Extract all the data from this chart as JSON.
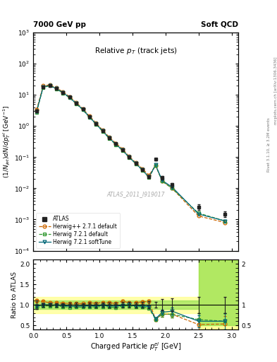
{
  "title_main": "Relative $p_T$ (track jets)",
  "top_left_label": "7000 GeV pp",
  "top_right_label": "Soft QCD",
  "right_label_bottom": "Rivet 3.1.10, ≥ 3.2M events",
  "right_label_top": "mcplots.cern.ch [arXiv:1306.3436]",
  "watermark": "ATLAS_2011_I919017",
  "xlabel": "Charged Particle $p_T^{el}$ [GeV]",
  "ylabel_top": "$(1/N_{jet})dN/dp_T^{el}$ [GeV$^{-1}$]",
  "ylabel_bottom": "Ratio to ATLAS",
  "xlim": [
    0,
    3.1
  ],
  "ylim_top_lo": 0.0001,
  "ylim_top_hi": 1000.0,
  "ylim_bottom_lo": 0.4,
  "ylim_bottom_hi": 2.1,
  "atlas_color": "#222222",
  "herwig_pp_color": "#cc6600",
  "herwig721_def_color": "#339933",
  "herwig721_soft_color": "#006677",
  "atlas_data_x": [
    0.05,
    0.15,
    0.25,
    0.35,
    0.45,
    0.55,
    0.65,
    0.75,
    0.85,
    0.95,
    1.05,
    1.15,
    1.25,
    1.35,
    1.45,
    1.55,
    1.65,
    1.75,
    1.85,
    1.95,
    2.1,
    2.5,
    2.9
  ],
  "atlas_data_y": [
    3.0,
    18.0,
    20.0,
    16.0,
    12.0,
    8.5,
    5.5,
    3.5,
    2.0,
    1.2,
    0.7,
    0.42,
    0.27,
    0.17,
    0.1,
    0.065,
    0.04,
    0.024,
    0.085,
    0.022,
    0.013,
    0.0025,
    0.0015
  ],
  "atlas_data_yerr": [
    0.3,
    0.8,
    0.8,
    0.7,
    0.5,
    0.4,
    0.3,
    0.15,
    0.1,
    0.07,
    0.04,
    0.025,
    0.016,
    0.011,
    0.007,
    0.004,
    0.003,
    0.002,
    0.006,
    0.003,
    0.002,
    0.0005,
    0.0003
  ],
  "hpp_x": [
    0.05,
    0.15,
    0.25,
    0.35,
    0.45,
    0.55,
    0.65,
    0.75,
    0.85,
    0.95,
    1.05,
    1.15,
    1.25,
    1.35,
    1.45,
    1.55,
    1.65,
    1.75,
    1.85,
    1.95,
    2.1,
    2.5,
    2.9
  ],
  "hpp_y": [
    3.3,
    19.5,
    21.0,
    16.8,
    12.5,
    8.8,
    5.7,
    3.6,
    2.1,
    1.25,
    0.74,
    0.44,
    0.28,
    0.185,
    0.105,
    0.068,
    0.043,
    0.026,
    0.055,
    0.017,
    0.01,
    0.0013,
    0.0008
  ],
  "h721d_x": [
    0.05,
    0.15,
    0.25,
    0.35,
    0.45,
    0.55,
    0.65,
    0.75,
    0.85,
    0.95,
    1.05,
    1.15,
    1.25,
    1.35,
    1.45,
    1.55,
    1.65,
    1.75,
    1.85,
    1.95,
    2.1,
    2.5,
    2.9
  ],
  "h721d_y": [
    2.8,
    17.5,
    19.5,
    15.5,
    11.5,
    8.0,
    5.2,
    3.3,
    1.9,
    1.14,
    0.67,
    0.4,
    0.25,
    0.165,
    0.098,
    0.062,
    0.038,
    0.022,
    0.055,
    0.017,
    0.01,
    0.0016,
    0.0009
  ],
  "h721s_x": [
    0.05,
    0.15,
    0.25,
    0.35,
    0.45,
    0.55,
    0.65,
    0.75,
    0.85,
    0.95,
    1.05,
    1.15,
    1.25,
    1.35,
    1.45,
    1.55,
    1.65,
    1.75,
    1.85,
    1.95,
    2.1,
    2.5,
    2.9
  ],
  "h721s_y": [
    2.9,
    18.0,
    20.0,
    15.8,
    11.8,
    8.2,
    5.3,
    3.4,
    1.95,
    1.17,
    0.69,
    0.41,
    0.26,
    0.168,
    0.1,
    0.063,
    0.039,
    0.023,
    0.056,
    0.018,
    0.011,
    0.0015,
    0.0009
  ],
  "ratio_hpp": [
    1.1,
    1.08,
    1.05,
    1.05,
    1.04,
    1.035,
    1.036,
    1.03,
    1.05,
    1.04,
    1.057,
    1.048,
    1.037,
    1.09,
    1.05,
    1.05,
    1.075,
    1.083,
    0.647,
    0.773,
    0.769,
    0.52,
    0.533
  ],
  "ratio_h721d": [
    0.933,
    0.972,
    0.975,
    0.969,
    0.958,
    0.941,
    0.945,
    0.943,
    0.95,
    0.95,
    0.957,
    0.952,
    0.926,
    0.971,
    0.98,
    0.954,
    0.95,
    0.917,
    0.647,
    0.773,
    0.769,
    0.64,
    0.6
  ],
  "ratio_h721s": [
    0.967,
    1.0,
    1.0,
    0.988,
    0.983,
    0.965,
    0.964,
    0.971,
    0.975,
    0.975,
    0.986,
    0.976,
    0.963,
    0.988,
    1.0,
    0.969,
    0.975,
    0.958,
    0.659,
    0.818,
    0.846,
    0.6,
    0.6
  ],
  "ratio_hpp_err": [
    0.04,
    0.025,
    0.02,
    0.02,
    0.018,
    0.016,
    0.016,
    0.015,
    0.02,
    0.018,
    0.02,
    0.02,
    0.02,
    0.025,
    0.025,
    0.025,
    0.03,
    0.035,
    0.04,
    0.06,
    0.08,
    0.15,
    0.2
  ],
  "ratio_h721d_err": [
    0.04,
    0.025,
    0.02,
    0.02,
    0.018,
    0.016,
    0.016,
    0.015,
    0.02,
    0.018,
    0.02,
    0.02,
    0.02,
    0.025,
    0.025,
    0.025,
    0.03,
    0.035,
    0.04,
    0.06,
    0.08,
    0.15,
    0.2
  ],
  "ratio_h721s_err": [
    0.04,
    0.025,
    0.02,
    0.02,
    0.018,
    0.016,
    0.016,
    0.015,
    0.02,
    0.018,
    0.02,
    0.02,
    0.02,
    0.025,
    0.025,
    0.025,
    0.03,
    0.035,
    0.04,
    0.06,
    0.08,
    0.15,
    0.2
  ],
  "band_narrow_green_lo": 0.9,
  "band_narrow_green_hi": 1.1,
  "band_narrow_yellow_lo": 0.8,
  "band_narrow_yellow_hi": 1.2,
  "band_wide_x_start": 2.5,
  "band_wide_x_end": 3.1,
  "fig_width": 3.93,
  "fig_height": 5.12
}
